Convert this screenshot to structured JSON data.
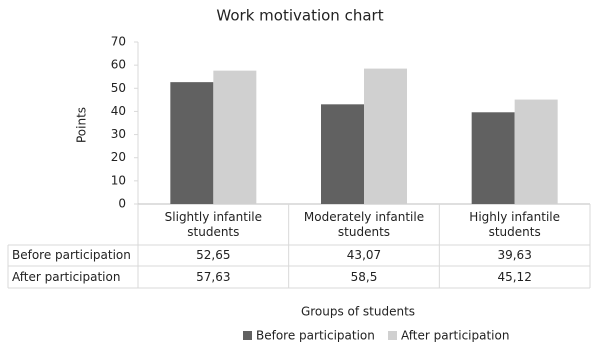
{
  "chart_data": {
    "type": "bar",
    "title": "Work motivation chart",
    "y_label": "Points",
    "x_label": "Groups of students",
    "categories": [
      "Slightly infantile students",
      "Moderately infantile students",
      "Highly infantile students"
    ],
    "series": [
      {
        "name": "Before participation",
        "color": "#616161",
        "values": [
          52.65,
          43.07,
          39.63
        ],
        "value_labels": [
          "52,65",
          "43,07",
          "39,63"
        ]
      },
      {
        "name": "After participation",
        "color": "#d0d0d0",
        "values": [
          57.63,
          58.5,
          45.12
        ],
        "value_labels": [
          "57,63",
          "58,5",
          "45,12"
        ]
      }
    ],
    "ylim": [
      0,
      70
    ],
    "yticks": [
      0,
      10,
      20,
      30,
      40,
      50,
      60,
      70
    ],
    "grid": false,
    "legend": "bottom"
  }
}
